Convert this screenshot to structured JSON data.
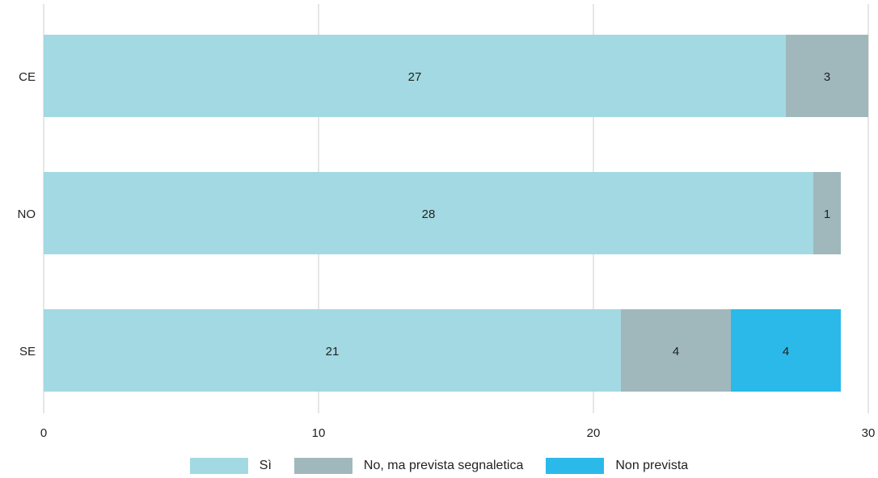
{
  "chart_data": {
    "type": "bar",
    "orientation": "horizontal",
    "stacked": true,
    "title": "",
    "xlabel": "",
    "ylabel": "",
    "xlim": [
      0,
      30
    ],
    "x_ticks": [
      0,
      10,
      20,
      30
    ],
    "grid": true,
    "legend_position": "bottom",
    "categories": [
      "CE",
      "NO",
      "SE"
    ],
    "series": [
      {
        "name": "Sì",
        "color": "#a3d9e2",
        "values": [
          27,
          28,
          21
        ]
      },
      {
        "name": "No, ma prevista segnaletica",
        "color": "#a0b8bc",
        "values": [
          3,
          1,
          4
        ]
      },
      {
        "name": "Non prevista",
        "color": "#2bb9ea",
        "values": [
          0,
          0,
          4
        ]
      }
    ]
  }
}
